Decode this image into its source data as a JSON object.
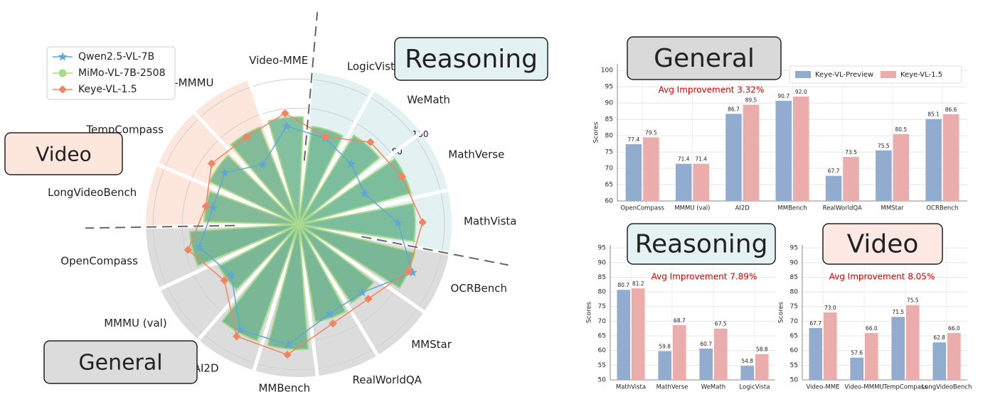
{
  "chart_data": [
    {
      "type": "radar",
      "categories": [
        "Video-MME",
        "LogicVista",
        "WeMath",
        "MathVerse",
        "MathVista",
        "OCRBench",
        "MMStar",
        "RealWorldQA",
        "MMBench",
        "AI2D",
        "MMMU (val)",
        "OpenCompass",
        "LongVideoBench",
        "TempCompass",
        "Video-MMMU"
      ],
      "series": [
        {
          "name": "Qwen2.5-VL-7B",
          "color": "#5fa8d3",
          "marker": "star",
          "values": [
            68,
            62,
            55,
            50,
            68,
            85,
            64,
            65,
            83,
            83,
            58,
            70,
            60,
            62,
            48
          ]
        },
        {
          "name": "MiMo-VL-7B-2508",
          "color": "#a9d98a",
          "marker": "circle",
          "values": [
            74,
            68,
            72,
            80,
            80,
            82,
            65,
            68,
            86,
            85,
            62,
            75,
            65,
            68,
            72
          ]
        },
        {
          "name": "Keye-VL-1.5",
          "color": "#f4845f",
          "marker": "diamond",
          "values": [
            77,
            63,
            75,
            78,
            85,
            82,
            70,
            72,
            90,
            88,
            64,
            78,
            65,
            73,
            70
          ]
        }
      ],
      "rlim": [
        0,
        105
      ],
      "rticks": [
        80,
        100
      ],
      "regions": [
        {
          "label": "Video",
          "color": "#fde6dc"
        },
        {
          "label": "Reasoning",
          "color": "#e3f1f3"
        },
        {
          "label": "General",
          "color": "#dcdcdc"
        }
      ]
    },
    {
      "type": "bar",
      "title": "General",
      "annotation": "Avg Improvement 3.32%",
      "ylabel": "Scores",
      "categories": [
        "OpenCompass",
        "MMMU (val)",
        "AI2D",
        "MMBench",
        "RealWorldQA",
        "MMStar",
        "OCRBench"
      ],
      "series": [
        {
          "name": "Keye-VL-Preview",
          "color": "#92acd0",
          "values": [
            77.4,
            71.4,
            86.7,
            90.7,
            67.7,
            75.5,
            85.1
          ],
          "value_labels": [
            "77.4",
            "71.4",
            "86.7",
            "90.7",
            "67.7",
            "75.5",
            "85.1"
          ]
        },
        {
          "name": "Keye-VL-1.5",
          "color": "#ebacac",
          "values": [
            79.5,
            71.4,
            89.5,
            92,
            73.5,
            80.5,
            86.6
          ],
          "value_labels": [
            "79.5",
            "71.4",
            "89.5",
            "92.0",
            "73.5",
            "80.5",
            "86.6"
          ]
        }
      ],
      "ylim": [
        60,
        102
      ],
      "yticks": [
        60,
        65,
        70,
        75,
        80,
        85,
        90,
        95,
        100
      ],
      "grid": true,
      "legend": "top-right"
    },
    {
      "type": "bar",
      "title": "Reasoning",
      "annotation": "Avg Improvement 7.89%",
      "ylabel": "Scores",
      "categories": [
        "MathVista",
        "MathVerse",
        "WeMath",
        "LogicVista"
      ],
      "series": [
        {
          "name": "Keye-VL-Preview",
          "color": "#92acd0",
          "values": [
            80.7,
            59.8,
            60.7,
            54.8
          ],
          "value_labels": [
            "80.7",
            "59.8",
            "60.7",
            "54.8"
          ]
        },
        {
          "name": "Keye-VL-1.5",
          "color": "#ebacac",
          "values": [
            81.2,
            68.7,
            67.5,
            58.8
          ],
          "value_labels": [
            "81.2",
            "68.7",
            "67.5",
            "58.8"
          ]
        }
      ],
      "ylim": [
        50,
        96
      ],
      "yticks": [
        50,
        55,
        60,
        65,
        70,
        75,
        80,
        85,
        90,
        95
      ],
      "grid": true
    },
    {
      "type": "bar",
      "title": "Video",
      "annotation": "Avg Improvement 8.05%",
      "ylabel": "Scores",
      "categories": [
        "Video-MME",
        "Video-MMMU",
        "TempCompass",
        "LongVideoBench"
      ],
      "series": [
        {
          "name": "Keye-VL-Preview",
          "color": "#92acd0",
          "values": [
            67.7,
            57.6,
            71.5,
            62.8
          ],
          "value_labels": [
            "67.7",
            "57.6",
            "71.5",
            "62.8"
          ]
        },
        {
          "name": "Keye-VL-1.5",
          "color": "#ebacac",
          "values": [
            73,
            66,
            75.5,
            66
          ],
          "value_labels": [
            "73.0",
            "66.0",
            "75.5",
            "66.0"
          ]
        }
      ],
      "ylim": [
        50,
        96
      ],
      "yticks": [
        50,
        55,
        60,
        65,
        70,
        75,
        80,
        85,
        90,
        95
      ],
      "grid": true
    }
  ]
}
